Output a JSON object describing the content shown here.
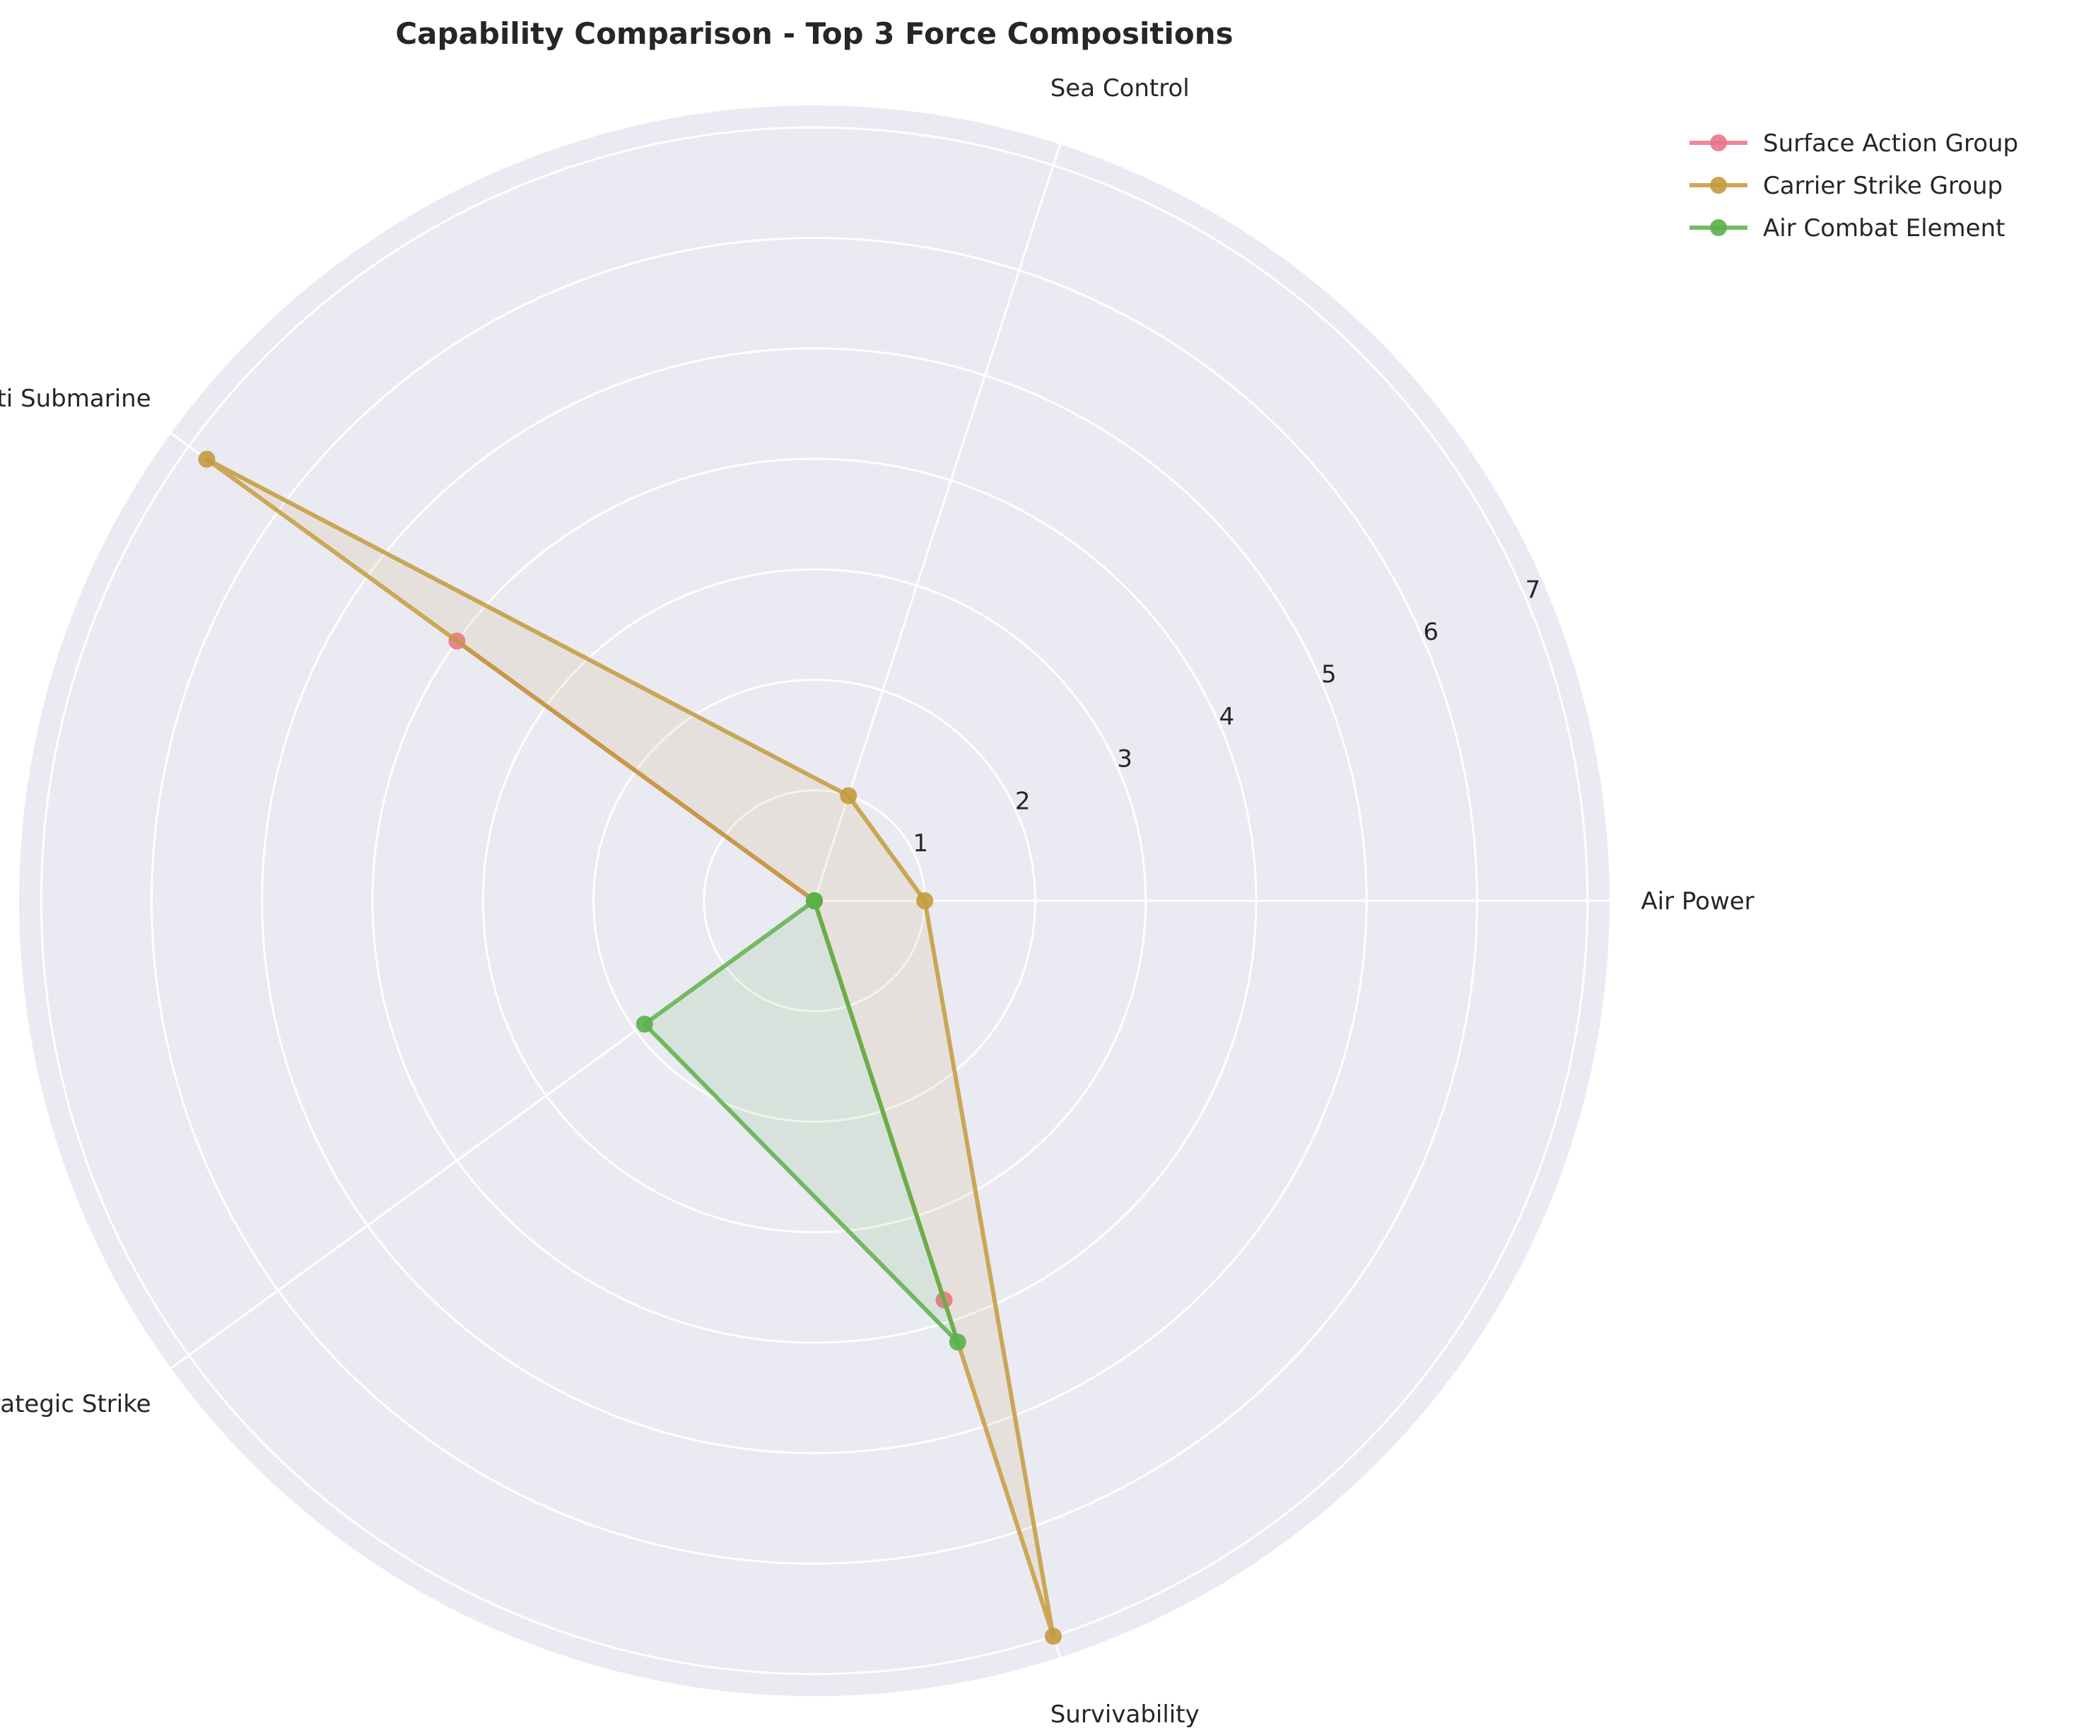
{
  "chart_data": {
    "type": "radar",
    "title": "Capability Comparison - Top 3 Force Compositions",
    "categories": [
      "Air Power",
      "Sea Control",
      "Anti Submarine",
      "Strategic Strike",
      "Survivability"
    ],
    "rlim": [
      0,
      7.2
    ],
    "rticks": [
      1,
      2,
      3,
      4,
      5,
      6,
      7
    ],
    "grid": true,
    "legend_position": "upper-right-outside",
    "series": [
      {
        "name": "Surface Action Group",
        "color": "#e8758a",
        "values": [
          0.0,
          0.0,
          4.0,
          0.0,
          3.8
        ]
      },
      {
        "name": "Carrier Strike Group",
        "color": "#c49a3c",
        "values": [
          1.0,
          1.0,
          6.8,
          0.0,
          7.0
        ]
      },
      {
        "name": "Air Combat Element",
        "color": "#5cb04a",
        "values": [
          0.0,
          0.0,
          0.0,
          1.9,
          4.2
        ]
      }
    ]
  },
  "background_color": "#eaeaf2",
  "grid_color": "#ffffff"
}
